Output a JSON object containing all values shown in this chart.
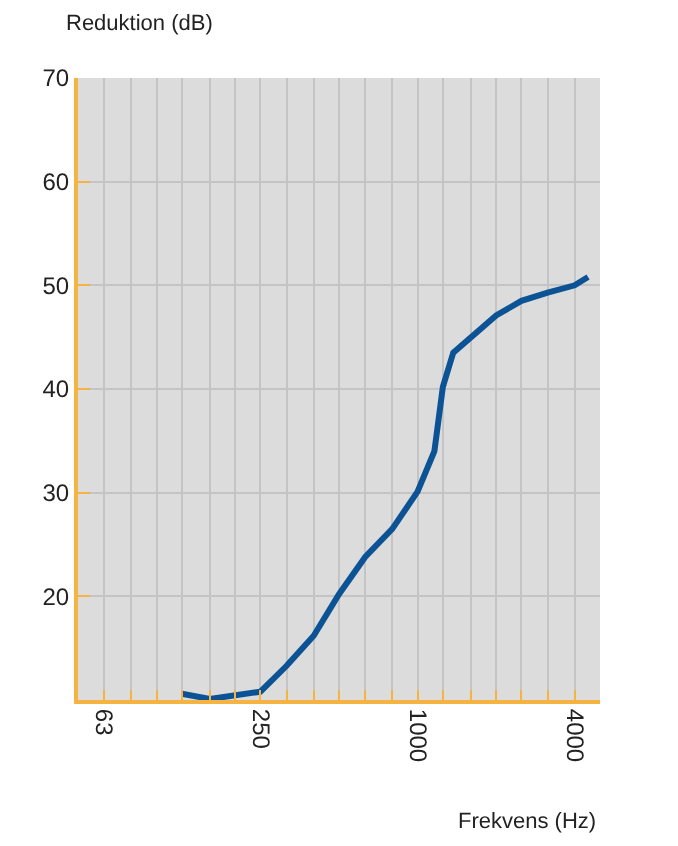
{
  "chart_data": {
    "type": "line",
    "xlabel": "Frekvens (Hz)",
    "ylabel": "Reduktion (dB)",
    "log": "x",
    "x": [
      125,
      160,
      250,
      315,
      400,
      500,
      630,
      800,
      1000,
      1160,
      1250,
      1370,
      2000,
      2500,
      3150,
      4000,
      4500
    ],
    "series": [
      {
        "color": "#0b5394",
        "values": [
          10.6,
          10.1,
          10.8,
          13.3,
          16.2,
          20.2,
          23.8,
          26.5,
          30.1,
          34,
          40.2,
          43.5,
          47.1,
          48.5,
          49.3,
          50,
          50.8
        ]
      }
    ],
    "xlim": [
      50,
      5000
    ],
    "xticks": [
      63,
      {
        "value": 80,
        "label": null
      },
      {
        "value": 100,
        "label": null
      },
      {
        "value": 125,
        "label": null
      },
      {
        "value": 160,
        "label": null
      },
      {
        "value": 200,
        "label": null
      },
      250,
      {
        "value": 315,
        "label": null
      },
      {
        "value": 400,
        "label": null
      },
      {
        "value": 500,
        "label": null
      },
      {
        "value": 630,
        "label": null
      },
      {
        "value": 800,
        "label": null
      },
      1000,
      {
        "value": 1250,
        "label": null
      },
      {
        "value": 1600,
        "label": null
      },
      {
        "value": 2000,
        "label": null
      },
      {
        "value": 2500,
        "label": null
      },
      {
        "value": 3150,
        "label": null
      },
      4000
    ],
    "ylim": [
      10,
      70
    ],
    "yticks": [
      20,
      30,
      40,
      50,
      60,
      70
    ],
    "grid": true,
    "marker": "none",
    "line_style": "solid"
  }
}
